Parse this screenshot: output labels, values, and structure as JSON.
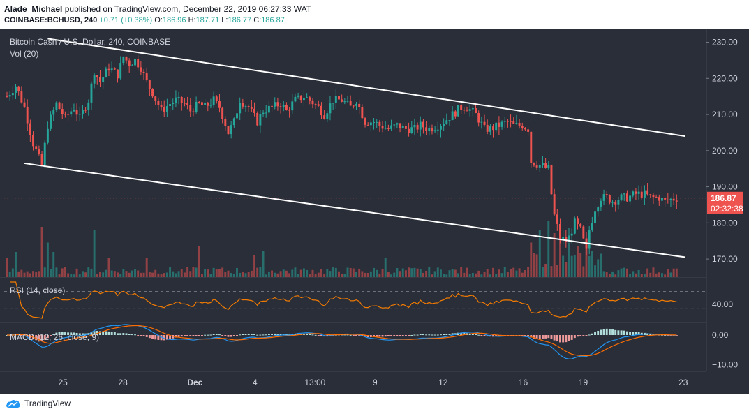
{
  "header": {
    "author": "Alade_Michael",
    "published_text": "published on TradingView.com, December 22, 2019 06:27:33 WAT",
    "symbol": "COINBASE:BCHUSD, 240",
    "change": "+0.71 (+0.38%)",
    "ohlc": [
      {
        "label": "O:",
        "value": "186.96"
      },
      {
        "label": "H:",
        "value": "187.71"
      },
      {
        "label": "L:",
        "value": "186.77"
      },
      {
        "label": "C:",
        "value": "186.87"
      }
    ]
  },
  "colors": {
    "background": "#2a2e39",
    "up": "#26a69a",
    "down": "#ef5350",
    "rsi_line": "#f57c00",
    "macd_line": "#2196f3",
    "signal_line": "#ff6d00",
    "trendline": "#ffffff",
    "price_tag": "#ef5350"
  },
  "footer": {
    "brand": "TradingView",
    "logo_icon": "tradingview-cloud-icon"
  },
  "chart_data": [
    {
      "type": "candlestick",
      "title": "Bitcoin Cash / U.S. Dollar, 240, COINBASE",
      "interval": "240",
      "x_ticks": [
        "25",
        "28",
        "Dec",
        "4",
        "13:00",
        "9",
        "12",
        "16",
        "19",
        "23"
      ],
      "y_ticks": [
        170,
        180,
        190,
        200,
        210,
        220,
        230
      ],
      "y_tick_labels": [
        "170.00",
        "180.00",
        "190.00",
        "200.00",
        "210.00",
        "220.00",
        "230.00"
      ],
      "ylim": [
        165,
        233
      ],
      "last_price": "186.87",
      "countdown": "02:32:38",
      "close_path": [
        [
          0,
          215
        ],
        [
          3,
          218
        ],
        [
          6,
          212
        ],
        [
          9,
          202
        ],
        [
          11,
          198
        ],
        [
          12,
          196
        ],
        [
          14,
          207
        ],
        [
          17,
          213
        ],
        [
          20,
          209
        ],
        [
          23,
          212
        ],
        [
          25,
          209
        ],
        [
          28,
          214
        ],
        [
          30,
          222
        ],
        [
          32,
          219
        ],
        [
          35,
          223
        ],
        [
          38,
          221
        ],
        [
          40,
          226
        ],
        [
          42,
          224
        ],
        [
          44,
          225
        ],
        [
          46,
          223
        ],
        [
          48,
          219
        ],
        [
          50,
          216
        ],
        [
          53,
          211
        ],
        [
          56,
          213
        ],
        [
          58,
          214
        ],
        [
          61,
          213
        ],
        [
          63,
          211
        ],
        [
          66,
          213
        ],
        [
          68,
          212
        ],
        [
          71,
          214
        ],
        [
          73,
          212
        ],
        [
          76,
          205
        ],
        [
          78,
          208
        ],
        [
          80,
          214
        ],
        [
          83,
          212
        ],
        [
          86,
          208
        ],
        [
          88,
          211
        ],
        [
          91,
          212
        ],
        [
          94,
          213
        ],
        [
          96,
          211
        ],
        [
          99,
          214
        ],
        [
          102,
          215
        ],
        [
          104,
          214
        ],
        [
          107,
          212
        ],
        [
          109,
          210
        ],
        [
          112,
          214
        ],
        [
          115,
          214
        ],
        [
          118,
          212
        ],
        [
          120,
          214
        ],
        [
          123,
          208
        ],
        [
          126,
          208
        ],
        [
          128,
          207
        ],
        [
          131,
          206
        ],
        [
          134,
          207
        ],
        [
          137,
          206
        ],
        [
          140,
          206
        ],
        [
          142,
          207
        ],
        [
          145,
          206
        ],
        [
          148,
          207
        ],
        [
          150,
          208
        ],
        [
          153,
          210
        ],
        [
          156,
          212
        ],
        [
          158,
          212
        ],
        [
          161,
          210
        ],
        [
          164,
          206
        ],
        [
          166,
          206
        ],
        [
          169,
          207
        ],
        [
          172,
          208
        ],
        [
          174,
          207
        ],
        [
          177,
          207
        ],
        [
          179,
          206
        ],
        [
          180,
          197
        ],
        [
          183,
          196
        ],
        [
          186,
          195
        ],
        [
          187,
          188
        ],
        [
          188,
          182
        ],
        [
          190,
          176
        ],
        [
          192,
          175
        ],
        [
          193,
          176
        ],
        [
          195,
          180
        ],
        [
          197,
          178
        ],
        [
          199,
          172
        ],
        [
          200,
          178
        ],
        [
          202,
          184
        ],
        [
          204,
          187
        ],
        [
          206,
          187
        ],
        [
          208,
          186
        ],
        [
          211,
          187
        ],
        [
          213,
          187
        ],
        [
          216,
          188
        ],
        [
          219,
          188
        ],
        [
          221,
          187
        ],
        [
          224,
          187
        ],
        [
          226,
          186
        ],
        [
          228,
          186.5
        ],
        [
          230,
          186.87
        ]
      ],
      "annotations": [
        {
          "type": "trendline",
          "name": "channel-top",
          "from": [
            14,
            231
          ],
          "to": [
            233,
            204
          ]
        },
        {
          "type": "trendline",
          "name": "channel-bottom",
          "from": [
            6,
            196.5
          ],
          "to": [
            233,
            170.5
          ]
        }
      ]
    },
    {
      "type": "bar",
      "title": "Vol (20)",
      "spikes": [
        [
          0,
          0.3
        ],
        [
          3,
          0.4
        ],
        [
          12,
          0.8
        ],
        [
          14,
          0.55
        ],
        [
          16,
          0.4
        ],
        [
          30,
          0.75
        ],
        [
          35,
          0.3
        ],
        [
          48,
          0.3
        ],
        [
          66,
          0.5
        ],
        [
          85,
          0.35
        ],
        [
          88,
          0.42
        ],
        [
          130,
          0.3
        ],
        [
          180,
          0.55
        ],
        [
          183,
          0.75
        ],
        [
          186,
          0.9
        ],
        [
          188,
          0.7
        ],
        [
          190,
          0.62
        ],
        [
          193,
          0.55
        ],
        [
          196,
          0.5
        ],
        [
          199,
          0.6
        ],
        [
          201,
          0.42
        ]
      ]
    },
    {
      "type": "line",
      "title": "RSI (14, close)",
      "y_ticks": [
        40
      ],
      "y_tick_labels": [
        "40.00"
      ],
      "ylim": [
        0,
        100
      ],
      "bands": [
        30,
        70
      ]
    },
    {
      "type": "histogram",
      "title": "MACD (12, 26, close, 9)",
      "y_ticks": [
        0,
        -10
      ],
      "y_tick_labels": [
        "0.00",
        "−10.00"
      ],
      "ylim": [
        -12,
        4
      ]
    }
  ]
}
